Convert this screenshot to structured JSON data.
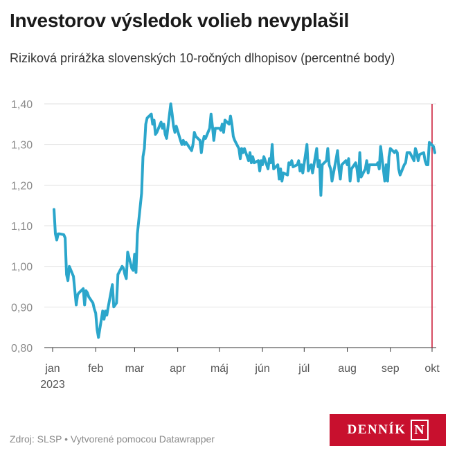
{
  "header": {
    "title": "Investorov výsledok volieb nevyplašil",
    "subtitle": "Riziková prirážka slovenských 10-ročných dlhopisov (percentné body)"
  },
  "footer": {
    "source": "Zdroj: SLSP • Vytvorené pomocou Datawrapper",
    "logo_text": "DENNÍK",
    "logo_mark": "N"
  },
  "colors": {
    "line": "#2ba6cb",
    "marker": "#c8102e",
    "grid": "#e2e2e2",
    "logo_bg": "#c8102e"
  },
  "chart_data": {
    "type": "line",
    "title": "Investorov výsledok volieb nevyplašil",
    "subtitle": "Riziková prirážka slovenských 10-ročných dlhopisov (percentné body)",
    "xlabel": "",
    "ylabel": "",
    "ylim": [
      0.8,
      1.4
    ],
    "y_ticks": [
      {
        "value": 0.8,
        "label": "0,80"
      },
      {
        "value": 0.9,
        "label": "0,90"
      },
      {
        "value": 1.0,
        "label": "1,00"
      },
      {
        "value": 1.1,
        "label": "1,10"
      },
      {
        "value": 1.2,
        "label": "1,20"
      },
      {
        "value": 1.3,
        "label": "1,30"
      },
      {
        "value": 1.4,
        "label": "1,40"
      }
    ],
    "x_ticks": [
      {
        "x": "2023-01-01",
        "label": "jan",
        "label2": "2023"
      },
      {
        "x": "2023-02-01",
        "label": "feb"
      },
      {
        "x": "2023-03-01",
        "label": "mar"
      },
      {
        "x": "2023-04-01",
        "label": "apr"
      },
      {
        "x": "2023-05-01",
        "label": "máj"
      },
      {
        "x": "2023-06-01",
        "label": "jún"
      },
      {
        "x": "2023-07-01",
        "label": "júl"
      },
      {
        "x": "2023-08-01",
        "label": "aug"
      },
      {
        "x": "2023-09-01",
        "label": "sep"
      },
      {
        "x": "2023-10-01",
        "label": "okt"
      }
    ],
    "xlim": [
      "2023-01-01",
      "2023-10-03"
    ],
    "grid": true,
    "marker_line": "2023-10-01",
    "series": [
      {
        "points": [
          [
            "2023-01-02",
            1.14
          ],
          [
            "2023-01-03",
            1.08
          ],
          [
            "2023-01-04",
            1.065
          ],
          [
            "2023-01-05",
            1.08
          ],
          [
            "2023-01-06",
            1.08
          ],
          [
            "2023-01-09",
            1.078
          ],
          [
            "2023-01-10",
            1.07
          ],
          [
            "2023-01-11",
            0.98
          ],
          [
            "2023-01-12",
            0.965
          ],
          [
            "2023-01-13",
            1.0
          ],
          [
            "2023-01-16",
            0.975
          ],
          [
            "2023-01-17",
            0.94
          ],
          [
            "2023-01-18",
            0.905
          ],
          [
            "2023-01-19",
            0.93
          ],
          [
            "2023-01-20",
            0.935
          ],
          [
            "2023-01-23",
            0.945
          ],
          [
            "2023-01-24",
            0.905
          ],
          [
            "2023-01-25",
            0.94
          ],
          [
            "2023-01-26",
            0.935
          ],
          [
            "2023-01-27",
            0.925
          ],
          [
            "2023-01-30",
            0.91
          ],
          [
            "2023-01-31",
            0.895
          ],
          [
            "2023-02-01",
            0.885
          ],
          [
            "2023-02-02",
            0.845
          ],
          [
            "2023-02-03",
            0.825
          ],
          [
            "2023-02-06",
            0.89
          ],
          [
            "2023-02-07",
            0.87
          ],
          [
            "2023-02-08",
            0.89
          ],
          [
            "2023-02-09",
            0.88
          ],
          [
            "2023-02-10",
            0.9
          ],
          [
            "2023-02-13",
            0.955
          ],
          [
            "2023-02-14",
            0.9
          ],
          [
            "2023-02-15",
            0.905
          ],
          [
            "2023-02-16",
            0.91
          ],
          [
            "2023-02-17",
            0.98
          ],
          [
            "2023-02-20",
            1.0
          ],
          [
            "2023-02-21",
            0.995
          ],
          [
            "2023-02-22",
            0.98
          ],
          [
            "2023-02-23",
            0.97
          ],
          [
            "2023-02-24",
            1.035
          ],
          [
            "2023-02-27",
            0.995
          ],
          [
            "2023-02-28",
            0.99
          ],
          [
            "2023-03-01",
            1.03
          ],
          [
            "2023-03-02",
            0.985
          ],
          [
            "2023-03-03",
            1.08
          ],
          [
            "2023-03-06",
            1.18
          ],
          [
            "2023-03-07",
            1.27
          ],
          [
            "2023-03-08",
            1.29
          ],
          [
            "2023-03-09",
            1.35
          ],
          [
            "2023-03-10",
            1.365
          ],
          [
            "2023-03-13",
            1.375
          ],
          [
            "2023-03-14",
            1.35
          ],
          [
            "2023-03-15",
            1.36
          ],
          [
            "2023-03-16",
            1.325
          ],
          [
            "2023-03-17",
            1.33
          ],
          [
            "2023-03-20",
            1.355
          ],
          [
            "2023-03-21",
            1.34
          ],
          [
            "2023-03-22",
            1.35
          ],
          [
            "2023-03-23",
            1.325
          ],
          [
            "2023-03-24",
            1.315
          ],
          [
            "2023-03-27",
            1.4
          ],
          [
            "2023-03-28",
            1.375
          ],
          [
            "2023-03-29",
            1.345
          ],
          [
            "2023-03-30",
            1.33
          ],
          [
            "2023-03-31",
            1.345
          ],
          [
            "2023-04-03",
            1.31
          ],
          [
            "2023-04-04",
            1.3
          ],
          [
            "2023-04-05",
            1.31
          ],
          [
            "2023-04-06",
            1.3
          ],
          [
            "2023-04-07",
            1.305
          ],
          [
            "2023-04-11",
            1.285
          ],
          [
            "2023-04-12",
            1.3
          ],
          [
            "2023-04-13",
            1.33
          ],
          [
            "2023-04-14",
            1.32
          ],
          [
            "2023-04-17",
            1.31
          ],
          [
            "2023-04-18",
            1.28
          ],
          [
            "2023-04-19",
            1.305
          ],
          [
            "2023-04-20",
            1.32
          ],
          [
            "2023-04-21",
            1.315
          ],
          [
            "2023-04-24",
            1.34
          ],
          [
            "2023-04-25",
            1.375
          ],
          [
            "2023-04-26",
            1.345
          ],
          [
            "2023-04-27",
            1.31
          ],
          [
            "2023-04-28",
            1.34
          ],
          [
            "2023-05-01",
            1.34
          ],
          [
            "2023-05-02",
            1.335
          ],
          [
            "2023-05-03",
            1.35
          ],
          [
            "2023-05-04",
            1.33
          ],
          [
            "2023-05-05",
            1.36
          ],
          [
            "2023-05-08",
            1.35
          ],
          [
            "2023-05-09",
            1.37
          ],
          [
            "2023-05-10",
            1.35
          ],
          [
            "2023-05-11",
            1.32
          ],
          [
            "2023-05-12",
            1.31
          ],
          [
            "2023-05-15",
            1.29
          ],
          [
            "2023-05-16",
            1.265
          ],
          [
            "2023-05-17",
            1.29
          ],
          [
            "2023-05-18",
            1.28
          ],
          [
            "2023-05-19",
            1.29
          ],
          [
            "2023-05-22",
            1.26
          ],
          [
            "2023-05-23",
            1.28
          ],
          [
            "2023-05-24",
            1.255
          ],
          [
            "2023-05-25",
            1.27
          ],
          [
            "2023-05-26",
            1.255
          ],
          [
            "2023-05-29",
            1.26
          ],
          [
            "2023-05-30",
            1.235
          ],
          [
            "2023-05-31",
            1.26
          ],
          [
            "2023-06-01",
            1.25
          ],
          [
            "2023-06-02",
            1.27
          ],
          [
            "2023-06-05",
            1.24
          ],
          [
            "2023-06-06",
            1.265
          ],
          [
            "2023-06-07",
            1.255
          ],
          [
            "2023-06-08",
            1.3
          ],
          [
            "2023-06-09",
            1.24
          ],
          [
            "2023-06-12",
            1.25
          ],
          [
            "2023-06-13",
            1.215
          ],
          [
            "2023-06-14",
            1.24
          ],
          [
            "2023-06-15",
            1.21
          ],
          [
            "2023-06-16",
            1.23
          ],
          [
            "2023-06-19",
            1.225
          ],
          [
            "2023-06-20",
            1.255
          ],
          [
            "2023-06-21",
            1.25
          ],
          [
            "2023-06-22",
            1.26
          ],
          [
            "2023-06-23",
            1.245
          ],
          [
            "2023-06-26",
            1.25
          ],
          [
            "2023-06-27",
            1.26
          ],
          [
            "2023-06-28",
            1.235
          ],
          [
            "2023-06-29",
            1.25
          ],
          [
            "2023-06-30",
            1.23
          ],
          [
            "2023-07-03",
            1.3
          ],
          [
            "2023-07-04",
            1.235
          ],
          [
            "2023-07-05",
            1.245
          ],
          [
            "2023-07-06",
            1.25
          ],
          [
            "2023-07-07",
            1.23
          ],
          [
            "2023-07-10",
            1.29
          ],
          [
            "2023-07-11",
            1.245
          ],
          [
            "2023-07-12",
            1.26
          ],
          [
            "2023-07-13",
            1.175
          ],
          [
            "2023-07-14",
            1.25
          ],
          [
            "2023-07-17",
            1.26
          ],
          [
            "2023-07-18",
            1.29
          ],
          [
            "2023-07-19",
            1.25
          ],
          [
            "2023-07-20",
            1.24
          ],
          [
            "2023-07-21",
            1.21
          ],
          [
            "2023-07-24",
            1.265
          ],
          [
            "2023-07-25",
            1.285
          ],
          [
            "2023-07-26",
            1.24
          ],
          [
            "2023-07-27",
            1.215
          ],
          [
            "2023-07-28",
            1.25
          ],
          [
            "2023-07-31",
            1.26
          ],
          [
            "2023-08-01",
            1.25
          ],
          [
            "2023-08-02",
            1.265
          ],
          [
            "2023-08-03",
            1.21
          ],
          [
            "2023-08-04",
            1.24
          ],
          [
            "2023-08-07",
            1.255
          ],
          [
            "2023-08-08",
            1.24
          ],
          [
            "2023-08-09",
            1.21
          ],
          [
            "2023-08-10",
            1.28
          ],
          [
            "2023-08-11",
            1.22
          ],
          [
            "2023-08-14",
            1.24
          ],
          [
            "2023-08-15",
            1.26
          ],
          [
            "2023-08-16",
            1.23
          ],
          [
            "2023-08-17",
            1.25
          ],
          [
            "2023-08-18",
            1.25
          ],
          [
            "2023-08-21",
            1.25
          ],
          [
            "2023-08-22",
            1.25
          ],
          [
            "2023-08-23",
            1.255
          ],
          [
            "2023-08-24",
            1.24
          ],
          [
            "2023-08-25",
            1.295
          ],
          [
            "2023-08-28",
            1.21
          ],
          [
            "2023-08-29",
            1.25
          ],
          [
            "2023-08-30",
            1.21
          ],
          [
            "2023-08-31",
            1.27
          ],
          [
            "2023-09-01",
            1.29
          ],
          [
            "2023-09-04",
            1.28
          ],
          [
            "2023-09-05",
            1.285
          ],
          [
            "2023-09-06",
            1.28
          ],
          [
            "2023-09-07",
            1.24
          ],
          [
            "2023-09-08",
            1.225
          ],
          [
            "2023-09-11",
            1.25
          ],
          [
            "2023-09-12",
            1.255
          ],
          [
            "2023-09-13",
            1.28
          ],
          [
            "2023-09-14",
            1.28
          ],
          [
            "2023-09-15",
            1.28
          ],
          [
            "2023-09-18",
            1.26
          ],
          [
            "2023-09-19",
            1.29
          ],
          [
            "2023-09-20",
            1.28
          ],
          [
            "2023-09-21",
            1.26
          ],
          [
            "2023-09-22",
            1.275
          ],
          [
            "2023-09-25",
            1.28
          ],
          [
            "2023-09-26",
            1.26
          ],
          [
            "2023-09-27",
            1.25
          ],
          [
            "2023-09-28",
            1.25
          ],
          [
            "2023-09-29",
            1.305
          ],
          [
            "2023-10-02",
            1.295
          ],
          [
            "2023-10-03",
            1.28
          ]
        ]
      }
    ]
  }
}
